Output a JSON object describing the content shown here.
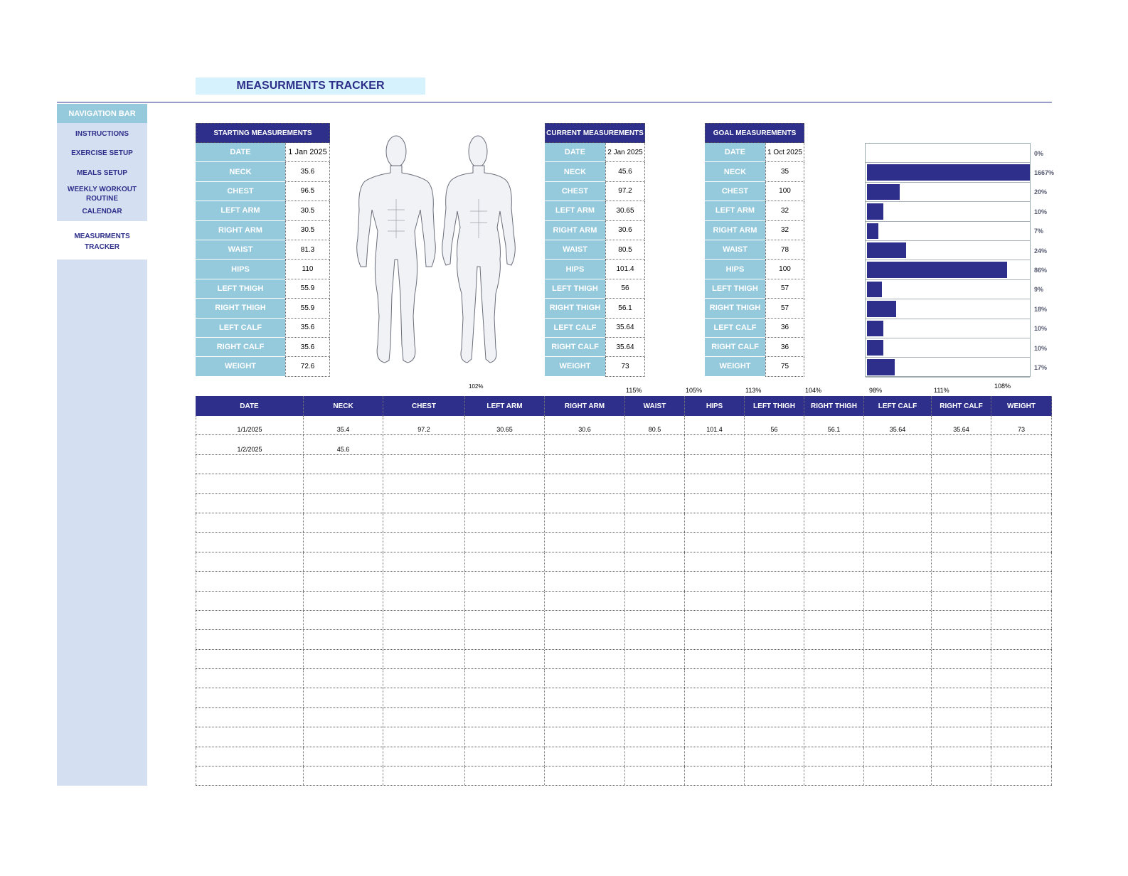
{
  "title": "MEASURMENTS TRACKER",
  "nav": {
    "header": "NAVIGATION BAR",
    "items": [
      "INSTRUCTIONS",
      "EXERCISE SETUP",
      "MEALS SETUP",
      "WEEKLY WORKOUT ROUTINE",
      "CALENDAR",
      "MEASURMENTS TRACKER"
    ],
    "active": "MEASURMENTS TRACKER"
  },
  "labels": [
    "DATE",
    "NECK",
    "CHEST",
    "LEFT ARM",
    "RIGHT ARM",
    "WAIST",
    "HIPS",
    "LEFT THIGH",
    "RIGHT THIGH",
    "LEFT CALF",
    "RIGHT CALF",
    "WEIGHT"
  ],
  "starting": {
    "title": "STARTING MEASUREMENTS",
    "values": [
      "1 Jan 2025",
      "35.6",
      "96.5",
      "30.5",
      "30.5",
      "81.3",
      "110",
      "55.9",
      "55.9",
      "35.6",
      "35.6",
      "72.6"
    ]
  },
  "current": {
    "title": "CURRENT MEASUREMENTS",
    "values": [
      "2 Jan 2025",
      "45.6",
      "97.2",
      "30.65",
      "30.6",
      "80.5",
      "101.4",
      "56",
      "56.1",
      "35.64",
      "35.64",
      "73"
    ]
  },
  "goal": {
    "title": "GOAL MEASUREMENTS",
    "values": [
      "1 Oct 2025",
      "35",
      "100",
      "32",
      "32",
      "78",
      "100",
      "57",
      "57",
      "36",
      "36",
      "75"
    ]
  },
  "progress": {
    "labels": [
      "0%",
      "1667%",
      "20%",
      "10%",
      "7%",
      "24%",
      "86%",
      "9%",
      "18%",
      "10%",
      "10%",
      "17%"
    ],
    "values": [
      0,
      1667,
      20,
      10,
      7,
      24,
      86,
      9,
      18,
      10,
      10,
      17
    ],
    "color": "#2e2f8a"
  },
  "percent_row": [
    "102%",
    "115%",
    "105%",
    "113%",
    "104%",
    "98%",
    "111%",
    "108%"
  ],
  "log": {
    "headers": [
      "DATE",
      "NECK",
      "CHEST",
      "LEFT ARM",
      "RIGHT ARM",
      "WAIST",
      "HIPS",
      "LEFT THIGH",
      "RIGHT THIGH",
      "LEFT CALF",
      "RIGHT CALF",
      "WEIGHT"
    ],
    "rows": [
      [
        "1/1/2025",
        "35.4",
        "97.2",
        "30.65",
        "30.6",
        "80.5",
        "101.4",
        "56",
        "56.1",
        "35.64",
        "35.64",
        "73"
      ],
      [
        "1/2/2025",
        "45.6",
        "",
        "",
        "",
        "",
        "",
        "",
        "",
        "",
        "",
        ""
      ]
    ]
  }
}
